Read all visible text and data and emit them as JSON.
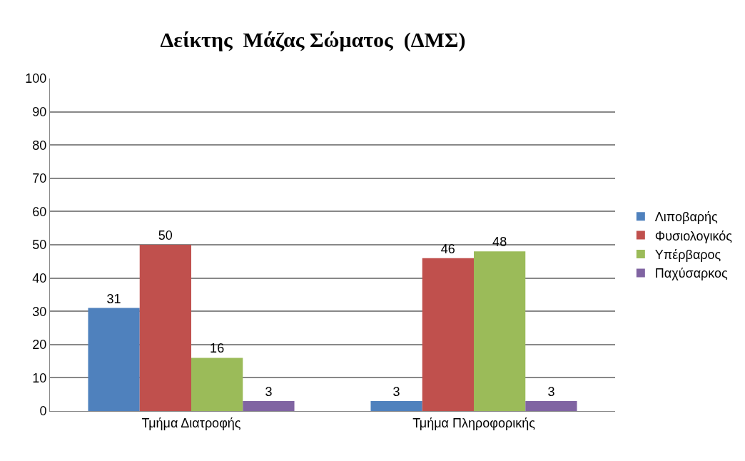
{
  "chart_data": {
    "type": "bar",
    "title": "Δείκτης  Μάζας Σώματος  (ΔΜΣ)",
    "categories": [
      "Τμήμα Διατροφής",
      "Τμήμα Πληροφορικής"
    ],
    "series": [
      {
        "name": "Λιποβαρής",
        "color": "#4f81bd",
        "values": [
          31,
          3
        ]
      },
      {
        "name": "Φυσιολογικός",
        "color": "#c0504d",
        "values": [
          50,
          46
        ]
      },
      {
        "name": "Υπέρβαρος",
        "color": "#9bbb59",
        "values": [
          16,
          48
        ]
      },
      {
        "name": "Παχύσαρκος",
        "color": "#8064a2",
        "values": [
          3,
          3
        ]
      }
    ],
    "ylim": [
      0,
      100
    ],
    "yticks": [
      0,
      10,
      20,
      30,
      40,
      50,
      60,
      70,
      80,
      90,
      100
    ],
    "grid": "y",
    "legend": "right",
    "data_labels": true
  }
}
